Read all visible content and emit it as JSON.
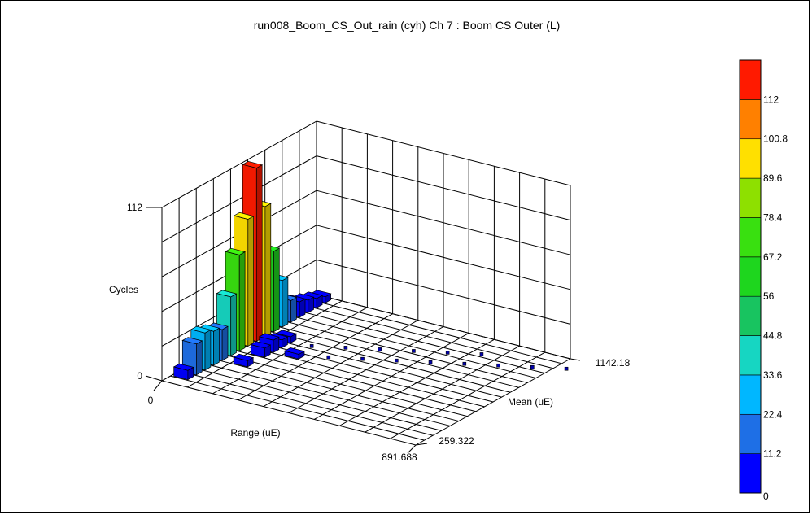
{
  "chart_data": {
    "type": "3d-bar-histogram",
    "title": "run008_Boom_CS_Out_rain (cyh) Ch 7 : Boom CS Outer (L)",
    "zlabel": "Cycles",
    "xlabel": "Range (uE)",
    "ylabel": "Mean (uE)",
    "z_ticks": [
      "0",
      "112"
    ],
    "x_ticks": [
      "0",
      "891.688"
    ],
    "y_ticks": [
      "259.322",
      "1142.18"
    ],
    "zlim": [
      0,
      112
    ],
    "xlim": [
      0,
      891.688
    ],
    "ylim": [
      259.322,
      1142.18
    ],
    "colorbar": {
      "ticks": [
        "0",
        "11.2",
        "22.4",
        "33.6",
        "44.8",
        "56",
        "67.2",
        "78.4",
        "89.6",
        "100.8",
        "112"
      ],
      "colors": [
        "#0000ff",
        "#1e6fe6",
        "#00b7ff",
        "#16d6c2",
        "#18c460",
        "#1ed61e",
        "#39e010",
        "#8ee000",
        "#ffe000",
        "#ff8000",
        "#ff1a00"
      ]
    },
    "bars": [
      {
        "range_bin": 0,
        "mean_bin": 1,
        "cycles": 6
      },
      {
        "range_bin": 0,
        "mean_bin": 2,
        "cycles": 20
      },
      {
        "range_bin": 0,
        "mean_bin": 3,
        "cycles": 24
      },
      {
        "range_bin": 0,
        "mean_bin": 4,
        "cycles": 22
      },
      {
        "range_bin": 0,
        "mean_bin": 5,
        "cycles": 20
      },
      {
        "range_bin": 0,
        "mean_bin": 6,
        "cycles": 38
      },
      {
        "range_bin": 0,
        "mean_bin": 7,
        "cycles": 62
      },
      {
        "range_bin": 0,
        "mean_bin": 8,
        "cycles": 82
      },
      {
        "range_bin": 0,
        "mean_bin": 9,
        "cycles": 112
      },
      {
        "range_bin": 0,
        "mean_bin": 10,
        "cycles": 84
      },
      {
        "range_bin": 0,
        "mean_bin": 11,
        "cycles": 52
      },
      {
        "range_bin": 0,
        "mean_bin": 12,
        "cycles": 30
      },
      {
        "range_bin": 0,
        "mean_bin": 13,
        "cycles": 14
      },
      {
        "range_bin": 0,
        "mean_bin": 14,
        "cycles": 10
      },
      {
        "range_bin": 0,
        "mean_bin": 15,
        "cycles": 8
      },
      {
        "range_bin": 0,
        "mean_bin": 16,
        "cycles": 6
      },
      {
        "range_bin": 0,
        "mean_bin": 17,
        "cycles": 4
      },
      {
        "range_bin": 1,
        "mean_bin": 5,
        "cycles": 4
      },
      {
        "range_bin": 1,
        "mean_bin": 7,
        "cycles": 6
      },
      {
        "range_bin": 1,
        "mean_bin": 8,
        "cycles": 8
      },
      {
        "range_bin": 1,
        "mean_bin": 9,
        "cycles": 5
      },
      {
        "range_bin": 1,
        "mean_bin": 10,
        "cycles": 4
      },
      {
        "range_bin": 2,
        "mean_bin": 8,
        "cycles": 3
      },
      {
        "range_bin": 2,
        "mean_bin": 10,
        "cycles": 2
      },
      {
        "range_bin": 3,
        "mean_bin": 9,
        "cycles": 2
      },
      {
        "range_bin": 3,
        "mean_bin": 11,
        "cycles": 2
      },
      {
        "range_bin": 4,
        "mean_bin": 10,
        "cycles": 2
      },
      {
        "range_bin": 4,
        "mean_bin": 12,
        "cycles": 1
      },
      {
        "range_bin": 5,
        "mean_bin": 11,
        "cycles": 2
      },
      {
        "range_bin": 5,
        "mean_bin": 13,
        "cycles": 1
      },
      {
        "range_bin": 6,
        "mean_bin": 12,
        "cycles": 2
      },
      {
        "range_bin": 6,
        "mean_bin": 14,
        "cycles": 1
      },
      {
        "range_bin": 7,
        "mean_bin": 13,
        "cycles": 1
      },
      {
        "range_bin": 7,
        "mean_bin": 15,
        "cycles": 1
      },
      {
        "range_bin": 8,
        "mean_bin": 14,
        "cycles": 1
      },
      {
        "range_bin": 9,
        "mean_bin": 15,
        "cycles": 1
      },
      {
        "range_bin": 10,
        "mean_bin": 16,
        "cycles": 1
      }
    ],
    "grid": true
  }
}
